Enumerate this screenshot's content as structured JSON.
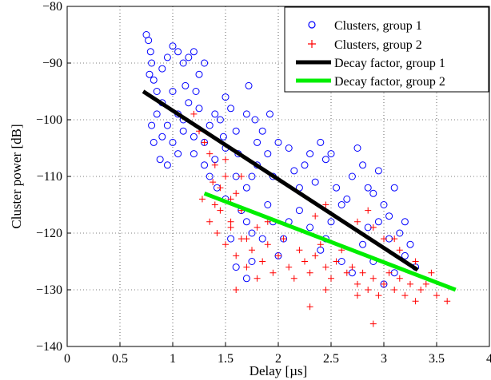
{
  "chart_data": {
    "type": "scatter",
    "xlabel": "Delay [µs]",
    "ylabel": "Cluster power [dB]",
    "xlim": [
      0,
      4
    ],
    "ylim": [
      -140,
      -80
    ],
    "xticks": [
      0,
      0.5,
      1,
      1.5,
      2,
      2.5,
      3,
      3.5,
      4
    ],
    "xtick_labels": [
      "0",
      "0.5",
      "1",
      "1.5",
      "2",
      "2.5",
      "3",
      "3.5",
      "4"
    ],
    "yticks": [
      -140,
      -130,
      -120,
      -110,
      -100,
      -90,
      -80
    ],
    "ytick_labels": [
      "−140",
      "−130",
      "−120",
      "−110",
      "−100",
      "−90",
      "−80"
    ],
    "grid": true,
    "legend_position": "top-right",
    "series": [
      {
        "name": "Clusters, group 1",
        "kind": "scatter",
        "marker": "circle",
        "color": "#0000ff",
        "points": [
          [
            0.75,
            -85
          ],
          [
            0.77,
            -86
          ],
          [
            0.79,
            -88
          ],
          [
            0.8,
            -90
          ],
          [
            0.78,
            -92
          ],
          [
            0.82,
            -93
          ],
          [
            0.85,
            -95
          ],
          [
            0.9,
            -91
          ],
          [
            0.95,
            -89
          ],
          [
            1.0,
            -87
          ],
          [
            1.05,
            -88
          ],
          [
            1.1,
            -90
          ],
          [
            1.15,
            -89
          ],
          [
            1.2,
            -88
          ],
          [
            1.25,
            -92
          ],
          [
            1.3,
            -90
          ],
          [
            1.22,
            -95
          ],
          [
            1.12,
            -94
          ],
          [
            1.0,
            -95
          ],
          [
            0.9,
            -97
          ],
          [
            0.85,
            -99
          ],
          [
            0.8,
            -101
          ],
          [
            0.82,
            -104
          ],
          [
            0.88,
            -107
          ],
          [
            0.95,
            -108
          ],
          [
            1.05,
            -106
          ],
          [
            1.1,
            -102
          ],
          [
            1.2,
            -103
          ],
          [
            1.3,
            -104
          ],
          [
            1.4,
            -99
          ],
          [
            1.45,
            -100
          ],
          [
            1.5,
            -96
          ],
          [
            1.55,
            -98
          ],
          [
            1.6,
            -102
          ],
          [
            1.7,
            -99
          ],
          [
            1.72,
            -94
          ],
          [
            1.78,
            -100
          ],
          [
            1.8,
            -104
          ],
          [
            1.5,
            -105
          ],
          [
            1.4,
            -107
          ],
          [
            1.35,
            -110
          ],
          [
            1.42,
            -112
          ],
          [
            1.5,
            -114
          ],
          [
            1.6,
            -110
          ],
          [
            1.7,
            -112
          ],
          [
            1.8,
            -108
          ],
          [
            1.85,
            -102
          ],
          [
            1.9,
            -106
          ],
          [
            1.95,
            -110
          ],
          [
            2.0,
            -104
          ],
          [
            2.1,
            -105
          ],
          [
            2.15,
            -109
          ],
          [
            2.2,
            -112
          ],
          [
            2.25,
            -108
          ],
          [
            2.3,
            -106
          ],
          [
            2.4,
            -104
          ],
          [
            2.5,
            -106
          ],
          [
            2.55,
            -112
          ],
          [
            2.6,
            -115
          ],
          [
            2.7,
            -110
          ],
          [
            2.75,
            -105
          ],
          [
            2.8,
            -108
          ],
          [
            2.85,
            -112
          ],
          [
            2.9,
            -113
          ],
          [
            2.95,
            -109
          ],
          [
            3.0,
            -115
          ],
          [
            3.05,
            -117
          ],
          [
            3.1,
            -112
          ],
          [
            3.15,
            -120
          ],
          [
            3.2,
            -118
          ],
          [
            3.25,
            -122
          ],
          [
            3.3,
            -126
          ],
          [
            2.5,
            -118
          ],
          [
            2.45,
            -121
          ],
          [
            2.4,
            -123
          ],
          [
            2.3,
            -119
          ],
          [
            2.2,
            -116
          ],
          [
            2.1,
            -118
          ],
          [
            2.05,
            -121
          ],
          [
            2.0,
            -124
          ],
          [
            1.95,
            -118
          ],
          [
            1.9,
            -115
          ],
          [
            1.85,
            -121
          ],
          [
            1.75,
            -125
          ],
          [
            1.7,
            -118
          ],
          [
            1.65,
            -116
          ],
          [
            1.55,
            -121
          ],
          [
            1.6,
            -126
          ],
          [
            1.7,
            -128
          ],
          [
            1.75,
            -120
          ],
          [
            2.6,
            -125
          ],
          [
            2.7,
            -127
          ],
          [
            2.8,
            -122
          ],
          [
            2.9,
            -125
          ],
          [
            3.0,
            -129
          ],
          [
            3.1,
            -127
          ],
          [
            3.2,
            -124
          ],
          [
            1.25,
            -98
          ],
          [
            1.15,
            -97
          ],
          [
            1.05,
            -99
          ],
          [
            0.95,
            -101
          ],
          [
            0.9,
            -103
          ],
          [
            1.0,
            -104
          ],
          [
            1.2,
            -106
          ],
          [
            1.3,
            -108
          ],
          [
            1.1,
            -100
          ],
          [
            1.35,
            -101
          ],
          [
            1.48,
            -103
          ],
          [
            1.62,
            -106
          ],
          [
            1.75,
            -110
          ],
          [
            2.35,
            -111
          ],
          [
            2.65,
            -114
          ],
          [
            2.95,
            -118
          ],
          [
            3.05,
            -121
          ],
          [
            2.85,
            -119
          ],
          [
            1.92,
            -99
          ],
          [
            2.45,
            -107
          ]
        ]
      },
      {
        "name": "Clusters, group 2",
        "kind": "scatter",
        "marker": "plus",
        "color": "#ff0000",
        "points": [
          [
            1.2,
            -99
          ],
          [
            1.25,
            -102
          ],
          [
            1.3,
            -104
          ],
          [
            1.35,
            -106
          ],
          [
            1.4,
            -108
          ],
          [
            1.45,
            -112
          ],
          [
            1.5,
            -110
          ],
          [
            1.55,
            -114
          ],
          [
            1.6,
            -113
          ],
          [
            1.65,
            -116
          ],
          [
            1.4,
            -115
          ],
          [
            1.35,
            -118
          ],
          [
            1.42,
            -120
          ],
          [
            1.5,
            -122
          ],
          [
            1.55,
            -119
          ],
          [
            1.6,
            -124
          ],
          [
            1.65,
            -121
          ],
          [
            1.7,
            -126
          ],
          [
            1.75,
            -123
          ],
          [
            1.8,
            -128
          ],
          [
            1.85,
            -125
          ],
          [
            1.9,
            -122
          ],
          [
            1.95,
            -127
          ],
          [
            2.0,
            -124
          ],
          [
            2.05,
            -121
          ],
          [
            2.1,
            -126
          ],
          [
            2.15,
            -128
          ],
          [
            2.2,
            -123
          ],
          [
            2.25,
            -125
          ],
          [
            2.3,
            -127
          ],
          [
            2.35,
            -124
          ],
          [
            2.4,
            -122
          ],
          [
            2.45,
            -126
          ],
          [
            2.5,
            -128
          ],
          [
            2.55,
            -125
          ],
          [
            2.6,
            -123
          ],
          [
            2.65,
            -127
          ],
          [
            2.7,
            -126
          ],
          [
            2.75,
            -129
          ],
          [
            2.8,
            -127
          ],
          [
            2.85,
            -130
          ],
          [
            2.9,
            -128
          ],
          [
            2.95,
            -131
          ],
          [
            3.0,
            -129
          ],
          [
            3.05,
            -127
          ],
          [
            3.1,
            -130
          ],
          [
            3.15,
            -128
          ],
          [
            3.2,
            -131
          ],
          [
            3.25,
            -129
          ],
          [
            3.3,
            -132
          ],
          [
            3.35,
            -130
          ],
          [
            3.4,
            -129
          ],
          [
            3.5,
            -131
          ],
          [
            3.6,
            -132
          ],
          [
            3.45,
            -127
          ],
          [
            3.3,
            -125
          ],
          [
            3.15,
            -123
          ],
          [
            3.0,
            -121
          ],
          [
            2.9,
            -119
          ],
          [
            2.85,
            -116
          ],
          [
            2.75,
            -118
          ],
          [
            3.1,
            -121
          ],
          [
            2.35,
            -117
          ],
          [
            2.45,
            -115
          ],
          [
            1.9,
            -118
          ],
          [
            1.7,
            -121
          ],
          [
            1.55,
            -118
          ],
          [
            1.45,
            -116
          ],
          [
            1.6,
            -130
          ],
          [
            2.3,
            -133
          ],
          [
            2.9,
            -136
          ],
          [
            2.75,
            -131
          ],
          [
            2.45,
            -130
          ],
          [
            1.8,
            -119
          ],
          [
            1.65,
            -110
          ],
          [
            1.5,
            -107
          ],
          [
            1.38,
            -111
          ],
          [
            1.28,
            -114
          ]
        ]
      },
      {
        "name": "Decay factor, group 1",
        "kind": "line",
        "color": "#000000",
        "x": [
          0.72,
          3.32
        ],
        "y": [
          -95,
          -126.5
        ]
      },
      {
        "name": "Decay factor, group 2",
        "kind": "line",
        "color": "#00ee00",
        "x": [
          1.3,
          3.68
        ],
        "y": [
          -113,
          -130
        ]
      }
    ]
  }
}
